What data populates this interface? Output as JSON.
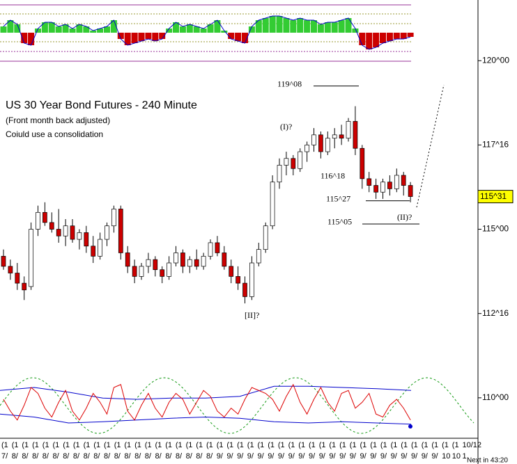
{
  "chart_data": {
    "type": "candlestick",
    "title": "US 30 Year Bond Futures - 240 Minute",
    "subtitle": "(Front month back adjusted)",
    "note": "Coiuld use a consolidation",
    "up_color": "#ffffff",
    "down_color": "#cc0000",
    "ylim": [
      109.0,
      121.8
    ],
    "yticks": [
      {
        "value": 120,
        "label": "120^00"
      },
      {
        "value": 117.5,
        "label": "117^16"
      },
      {
        "value": 115,
        "label": "115^00"
      },
      {
        "value": 112.5,
        "label": "112^16"
      },
      {
        "value": 110,
        "label": "110^00"
      }
    ],
    "last_price": {
      "value": 115.96875,
      "label": "115^31"
    },
    "annotations": [
      {
        "text": "119^08",
        "value": 119.25
      },
      {
        "text": "116^18",
        "value": 116.5625
      },
      {
        "text": "115^27",
        "value": 115.84375
      },
      {
        "text": "115^05",
        "value": 115.15625
      }
    ],
    "wave_labels": [
      "(I)?",
      "(II)?",
      "[II]?"
    ],
    "open": [
      114.2,
      113.9,
      113.7,
      113.4,
      113.3,
      115.0,
      115.5,
      115.2,
      115.0,
      114.8,
      115.1,
      114.7,
      114.9,
      114.5,
      114.2,
      114.7,
      115.1,
      115.6,
      114.3,
      113.9,
      113.6,
      113.9,
      114.1,
      113.8,
      113.6,
      114.0,
      114.3,
      113.9,
      114.1,
      113.9,
      114.2,
      114.6,
      114.3,
      113.9,
      113.6,
      113.4,
      113.0,
      114.0,
      114.4,
      115.1,
      116.4,
      116.9,
      117.1,
      116.8,
      117.3,
      117.5,
      117.8,
      117.3,
      117.7,
      117.8,
      117.7,
      118.2,
      117.4,
      116.5,
      116.3,
      116.1,
      116.4,
      116.2,
      116.6,
      116.3
    ],
    "high": [
      114.4,
      114.1,
      114.0,
      113.6,
      115.2,
      115.7,
      115.8,
      115.5,
      115.6,
      115.3,
      115.3,
      115.0,
      115.1,
      114.8,
      114.9,
      115.2,
      115.7,
      115.7,
      114.5,
      114.1,
      114.0,
      114.3,
      114.2,
      113.9,
      114.2,
      114.5,
      114.4,
      114.2,
      114.4,
      114.3,
      114.7,
      114.8,
      114.5,
      114.1,
      113.9,
      113.6,
      114.2,
      114.6,
      115.2,
      116.6,
      117.1,
      117.3,
      117.2,
      117.4,
      117.6,
      118.0,
      117.9,
      117.9,
      118.0,
      118.1,
      118.3,
      118.65,
      117.5,
      116.7,
      116.5,
      116.5,
      116.6,
      116.8,
      116.7,
      116.4
    ],
    "low": [
      113.8,
      113.5,
      113.2,
      112.9,
      113.2,
      114.8,
      115.1,
      114.9,
      114.6,
      114.5,
      114.6,
      114.4,
      114.3,
      114.0,
      114.1,
      114.5,
      114.9,
      114.1,
      113.7,
      113.4,
      113.5,
      113.7,
      113.6,
      113.4,
      113.5,
      113.9,
      113.7,
      113.7,
      113.8,
      113.8,
      114.1,
      114.2,
      113.8,
      113.4,
      113.2,
      112.8,
      112.9,
      113.9,
      114.3,
      115.0,
      116.2,
      116.6,
      116.6,
      116.7,
      117.0,
      117.3,
      117.1,
      117.2,
      117.4,
      117.5,
      117.6,
      117.2,
      116.2,
      116.1,
      115.9,
      115.9,
      116.0,
      116.1,
      116.0,
      115.8
    ],
    "close": [
      113.9,
      113.7,
      113.4,
      113.2,
      115.0,
      115.5,
      115.2,
      115.0,
      114.8,
      115.1,
      114.7,
      114.9,
      114.5,
      114.2,
      114.7,
      115.1,
      115.6,
      114.3,
      113.9,
      113.6,
      113.9,
      114.1,
      113.8,
      113.6,
      114.0,
      114.3,
      113.9,
      114.1,
      113.9,
      114.2,
      114.6,
      114.3,
      113.9,
      113.6,
      113.4,
      113.0,
      114.0,
      114.4,
      115.1,
      116.4,
      116.9,
      117.1,
      116.8,
      117.3,
      117.5,
      117.8,
      117.3,
      117.7,
      117.8,
      117.7,
      118.2,
      117.4,
      116.5,
      116.3,
      116.1,
      116.4,
      116.2,
      116.6,
      116.3,
      115.97
    ],
    "top_oscillator": [
      0.3,
      0.6,
      0.4,
      -0.5,
      -0.6,
      0.2,
      0.5,
      0.5,
      0.3,
      0.4,
      0.2,
      0.4,
      0.3,
      0.1,
      0.2,
      0.3,
      0.6,
      -0.3,
      -0.6,
      -0.5,
      -0.4,
      -0.3,
      -0.4,
      -0.3,
      0.2,
      0.5,
      0.3,
      0.4,
      0.3,
      0.2,
      0.4,
      0.6,
      0.1,
      -0.3,
      -0.4,
      -0.5,
      0.3,
      0.6,
      0.7,
      0.8,
      0.8,
      0.7,
      0.6,
      0.7,
      0.6,
      0.6,
      0.4,
      0.5,
      0.5,
      0.6,
      0.7,
      0.2,
      -0.6,
      -0.8,
      -0.7,
      -0.5,
      -0.4,
      -0.3,
      -0.3,
      -0.2
    ],
    "bottom_oscillator": [
      60,
      40,
      25,
      50,
      80,
      70,
      45,
      30,
      55,
      75,
      40,
      25,
      45,
      70,
      55,
      35,
      80,
      85,
      40,
      25,
      50,
      70,
      45,
      30,
      55,
      70,
      60,
      35,
      55,
      75,
      65,
      40,
      30,
      45,
      35,
      60,
      80,
      75,
      70,
      60,
      40,
      65,
      85,
      55,
      35,
      60,
      80,
      55,
      40,
      70,
      75,
      45,
      55,
      70,
      35,
      30,
      50,
      60,
      45,
      25
    ],
    "band_upper": [
      75,
      80,
      72,
      62,
      60,
      62,
      62,
      65,
      82,
      82,
      80,
      78,
      75
    ],
    "band_lower": [
      35,
      30,
      20,
      22,
      25,
      28,
      30,
      28,
      22,
      20,
      22,
      20,
      18
    ],
    "x_labels_top": [
      "(1",
      "(1",
      "(1",
      "(1",
      "(1",
      "(1",
      "(1",
      "(1",
      "(1",
      "(1",
      "(1",
      "(1",
      "(1",
      "(1",
      "(1",
      "(1",
      "(1",
      "(1",
      "(1",
      "(1",
      "(1",
      "(1",
      "(1",
      "(1",
      "(1",
      "(1",
      "(1",
      "(1",
      "(1",
      "(1",
      "(1",
      "(1",
      "(1",
      "(1",
      "(1",
      "(1",
      "(1",
      "(1",
      "(1",
      "(1",
      "(1",
      "(1",
      "(1",
      "(1",
      "(1",
      "10/12"
    ],
    "x_labels_bottom": [
      "7/",
      "8/",
      "8/",
      "8/",
      "8/",
      "8/",
      "8/",
      "8/",
      "8/",
      "8/",
      "8/",
      "8/",
      "8/",
      "8/",
      "8/",
      "8/",
      "8/",
      "8/",
      "8/",
      "8/",
      "8/",
      "9/",
      "9/",
      "9/",
      "9/",
      "9/",
      "9/",
      "9/",
      "9/",
      "9/",
      "9/",
      "9/",
      "9/",
      "9/",
      "9/",
      "9/",
      "9/",
      "9/",
      "9/",
      "9/",
      "9/",
      "9/",
      "9/",
      "10",
      "10",
      "1"
    ],
    "countdown": "Next in 43:20"
  }
}
